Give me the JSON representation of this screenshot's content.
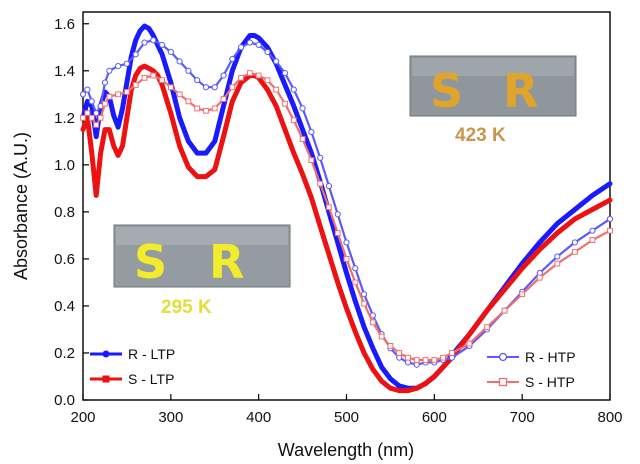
{
  "chart_data": {
    "type": "line",
    "title": "",
    "xlabel": "Wavelength (nm)",
    "ylabel": "Absorbance (A.U.)",
    "xlim": [
      200,
      800
    ],
    "ylim": [
      0.0,
      1.65
    ],
    "xticks": [
      200,
      300,
      400,
      500,
      600,
      700,
      800
    ],
    "yticks": [
      0.0,
      0.2,
      0.4,
      0.6,
      0.8,
      1.0,
      1.2,
      1.4,
      1.6
    ],
    "xtick_labels": [
      "200",
      "300",
      "400",
      "500",
      "600",
      "700",
      "800"
    ],
    "ytick_labels": [
      "0.0",
      "0.2",
      "0.4",
      "0.6",
      "0.8",
      "1.0",
      "1.2",
      "1.4",
      "1.6"
    ],
    "legend_placement": "bottom-left and bottom-right",
    "series": [
      {
        "name": "R - LTP",
        "color": "#1a1aff",
        "marker": "filled-circle",
        "x": [
          200,
          205,
          210,
          215,
          220,
          225,
          230,
          235,
          240,
          245,
          250,
          255,
          260,
          265,
          270,
          275,
          280,
          285,
          290,
          300,
          310,
          320,
          330,
          340,
          350,
          360,
          370,
          380,
          390,
          395,
          400,
          410,
          420,
          430,
          440,
          450,
          460,
          470,
          480,
          490,
          500,
          510,
          520,
          530,
          540,
          550,
          560,
          570,
          580,
          590,
          600,
          610,
          620,
          640,
          660,
          680,
          700,
          720,
          740,
          760,
          780,
          800
        ],
        "y": [
          1.2,
          1.27,
          1.25,
          1.12,
          1.25,
          1.31,
          1.29,
          1.21,
          1.16,
          1.24,
          1.35,
          1.46,
          1.53,
          1.57,
          1.59,
          1.58,
          1.55,
          1.51,
          1.47,
          1.35,
          1.2,
          1.1,
          1.05,
          1.05,
          1.1,
          1.25,
          1.4,
          1.5,
          1.55,
          1.55,
          1.54,
          1.5,
          1.43,
          1.34,
          1.25,
          1.15,
          1.05,
          0.93,
          0.8,
          0.67,
          0.54,
          0.42,
          0.31,
          0.22,
          0.14,
          0.09,
          0.06,
          0.05,
          0.05,
          0.07,
          0.1,
          0.14,
          0.19,
          0.28,
          0.38,
          0.48,
          0.58,
          0.67,
          0.75,
          0.81,
          0.87,
          0.92
        ]
      },
      {
        "name": "S - LTP",
        "color": "#ee1111",
        "marker": "filled-square",
        "x": [
          200,
          205,
          210,
          215,
          220,
          225,
          230,
          235,
          240,
          245,
          250,
          255,
          260,
          265,
          270,
          275,
          280,
          285,
          290,
          300,
          310,
          320,
          330,
          340,
          350,
          360,
          370,
          380,
          390,
          395,
          400,
          410,
          420,
          430,
          440,
          450,
          460,
          470,
          480,
          490,
          500,
          510,
          520,
          530,
          540,
          550,
          560,
          570,
          580,
          590,
          600,
          610,
          620,
          640,
          660,
          680,
          700,
          720,
          740,
          760,
          780,
          800
        ],
        "y": [
          1.15,
          1.2,
          1.05,
          0.87,
          1.05,
          1.15,
          1.15,
          1.08,
          1.04,
          1.08,
          1.2,
          1.32,
          1.38,
          1.41,
          1.42,
          1.41,
          1.4,
          1.38,
          1.34,
          1.22,
          1.08,
          0.99,
          0.95,
          0.95,
          0.98,
          1.12,
          1.27,
          1.35,
          1.38,
          1.38,
          1.37,
          1.32,
          1.25,
          1.15,
          1.05,
          0.96,
          0.86,
          0.74,
          0.62,
          0.5,
          0.39,
          0.29,
          0.2,
          0.13,
          0.08,
          0.05,
          0.04,
          0.04,
          0.05,
          0.07,
          0.1,
          0.14,
          0.18,
          0.28,
          0.38,
          0.47,
          0.56,
          0.64,
          0.71,
          0.77,
          0.81,
          0.85
        ]
      },
      {
        "name": "R - HTP",
        "color": "#5a5aff",
        "marker": "open-circle",
        "x": [
          200,
          205,
          210,
          215,
          220,
          225,
          230,
          240,
          250,
          260,
          270,
          280,
          290,
          300,
          310,
          320,
          330,
          340,
          350,
          360,
          370,
          380,
          390,
          400,
          410,
          420,
          430,
          440,
          450,
          460,
          470,
          480,
          490,
          500,
          510,
          520,
          530,
          540,
          550,
          560,
          570,
          580,
          590,
          600,
          610,
          620,
          640,
          660,
          680,
          700,
          720,
          740,
          760,
          780,
          800
        ],
        "y": [
          1.3,
          1.32,
          1.27,
          1.22,
          1.25,
          1.35,
          1.4,
          1.42,
          1.43,
          1.47,
          1.52,
          1.53,
          1.51,
          1.48,
          1.44,
          1.4,
          1.36,
          1.33,
          1.33,
          1.38,
          1.45,
          1.5,
          1.52,
          1.51,
          1.48,
          1.44,
          1.39,
          1.32,
          1.24,
          1.14,
          1.03,
          0.91,
          0.79,
          0.67,
          0.56,
          0.45,
          0.36,
          0.28,
          0.22,
          0.18,
          0.16,
          0.15,
          0.16,
          0.16,
          0.17,
          0.18,
          0.23,
          0.3,
          0.38,
          0.46,
          0.54,
          0.61,
          0.67,
          0.72,
          0.77
        ]
      },
      {
        "name": "S - HTP",
        "color": "#f07070",
        "marker": "open-square",
        "x": [
          200,
          205,
          210,
          215,
          220,
          225,
          230,
          240,
          250,
          260,
          270,
          280,
          290,
          300,
          310,
          320,
          330,
          340,
          350,
          360,
          370,
          380,
          390,
          400,
          410,
          420,
          430,
          440,
          450,
          460,
          470,
          480,
          490,
          500,
          510,
          520,
          530,
          540,
          550,
          560,
          570,
          580,
          590,
          600,
          610,
          620,
          640,
          660,
          680,
          700,
          720,
          740,
          760,
          780,
          800
        ],
        "y": [
          1.2,
          1.22,
          1.2,
          1.17,
          1.2,
          1.26,
          1.29,
          1.3,
          1.31,
          1.34,
          1.37,
          1.38,
          1.36,
          1.33,
          1.3,
          1.27,
          1.24,
          1.23,
          1.24,
          1.28,
          1.33,
          1.37,
          1.39,
          1.38,
          1.36,
          1.32,
          1.26,
          1.19,
          1.11,
          1.02,
          0.92,
          0.82,
          0.71,
          0.6,
          0.5,
          0.41,
          0.33,
          0.27,
          0.23,
          0.2,
          0.18,
          0.17,
          0.17,
          0.17,
          0.18,
          0.2,
          0.24,
          0.31,
          0.38,
          0.45,
          0.52,
          0.58,
          0.63,
          0.68,
          0.72
        ]
      }
    ],
    "annotations": [
      {
        "id": "photo_hot",
        "label": "423 K",
        "label_color": "#c8964a",
        "letters": [
          "S",
          "R"
        ],
        "letter_color": "#e0a42a"
      },
      {
        "id": "photo_cold",
        "label": "295 K",
        "label_color": "#e2df3c",
        "letters": [
          "S",
          "R"
        ],
        "letter_color": "#f2ec2c"
      }
    ]
  }
}
